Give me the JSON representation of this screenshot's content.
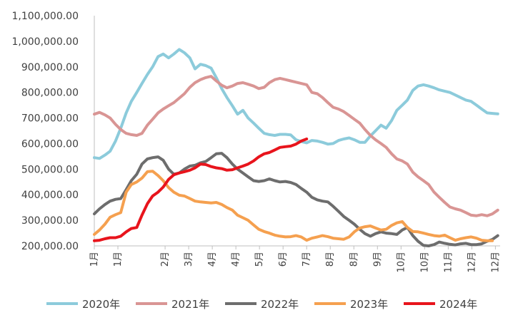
{
  "chart_data": {
    "type": "line",
    "title": "",
    "xlabel": "",
    "ylabel": "",
    "ylim": [
      200000,
      1100000
    ],
    "y_ticks": [
      "200,000.00",
      "300,000.00",
      "400,000.00",
      "500,000.00",
      "600,000.00",
      "700,000.00",
      "800,000.00",
      "900,000.00",
      "1,000,000.00",
      "1,100,000.00"
    ],
    "y_tick_values": [
      200000,
      300000,
      400000,
      500000,
      600000,
      700000,
      800000,
      900000,
      1000000,
      1100000
    ],
    "x_ticks": [
      "1月",
      "1月",
      "2月",
      "3月",
      "4月",
      "4月",
      "5月",
      "6月",
      "7月",
      "8月",
      "8月",
      "9月",
      "10月",
      "10月",
      "11月",
      "12月",
      "12月"
    ],
    "x_tick_weeks": [
      1,
      2,
      4,
      5,
      6,
      7,
      8,
      9,
      10,
      11,
      12,
      13,
      14,
      15,
      16,
      17,
      18
    ],
    "xlim": [
      1,
      18.2
    ],
    "grid": false,
    "legend_position": "bottom",
    "series": [
      {
        "name": "2020年",
        "color": "#8CCBDB",
        "x": [
          1,
          1.22,
          1.45,
          1.67,
          1.9,
          2.12,
          2.35,
          2.57,
          2.8,
          3.02,
          3.25,
          3.47,
          3.7,
          3.92,
          4.15,
          4.37,
          4.6,
          4.82,
          5.05,
          5.27,
          5.5,
          5.72,
          5.95,
          6.17,
          6.4,
          6.62,
          6.85,
          7.07,
          7.3,
          7.52,
          7.75,
          7.97,
          8.2,
          8.42,
          8.65,
          8.87,
          9.1,
          9.32,
          9.55,
          9.77,
          10.0,
          10.22,
          10.45,
          10.67,
          10.9,
          11.12,
          11.35,
          11.57,
          11.8,
          12.02,
          12.25,
          12.47,
          12.7,
          12.92,
          13.15,
          13.37,
          13.6,
          13.82,
          14.05,
          14.27,
          14.5,
          14.72,
          14.95,
          15.17,
          15.4,
          15.62,
          15.85,
          16.07,
          16.3,
          16.52,
          16.75,
          16.97,
          17.2,
          17.42,
          17.65,
          17.87,
          18.1
        ],
        "y": [
          545000,
          542000,
          555000,
          570000,
          610000,
          660000,
          720000,
          765000,
          800000,
          835000,
          870000,
          900000,
          940000,
          950000,
          935000,
          950000,
          968000,
          955000,
          935000,
          892000,
          910000,
          905000,
          895000,
          858000,
          815000,
          780000,
          748000,
          715000,
          730000,
          700000,
          680000,
          660000,
          640000,
          635000,
          632000,
          636000,
          636000,
          634000,
          615000,
          608000,
          603000,
          612000,
          610000,
          605000,
          598000,
          600000,
          612000,
          618000,
          622000,
          615000,
          605000,
          605000,
          630000,
          650000,
          672000,
          660000,
          690000,
          730000,
          750000,
          770000,
          808000,
          825000,
          830000,
          825000,
          818000,
          810000,
          805000,
          800000,
          790000,
          780000,
          770000,
          765000,
          750000,
          735000,
          720000,
          718000,
          716000
        ]
      },
      {
        "name": "2021年",
        "color": "#D99594",
        "x": [
          1,
          1.22,
          1.45,
          1.67,
          1.9,
          2.12,
          2.35,
          2.57,
          2.8,
          3.02,
          3.25,
          3.47,
          3.7,
          3.92,
          4.15,
          4.37,
          4.6,
          4.82,
          5.05,
          5.27,
          5.5,
          5.72,
          5.95,
          6.17,
          6.4,
          6.62,
          6.85,
          7.07,
          7.3,
          7.52,
          7.75,
          7.97,
          8.2,
          8.42,
          8.65,
          8.87,
          9.1,
          9.32,
          9.55,
          9.77,
          10.0,
          10.22,
          10.45,
          10.67,
          10.9,
          11.12,
          11.35,
          11.57,
          11.8,
          12.02,
          12.25,
          12.47,
          12.7,
          12.92,
          13.15,
          13.37,
          13.6,
          13.82,
          14.05,
          14.27,
          14.5,
          14.72,
          14.95,
          15.17,
          15.4,
          15.62,
          15.85,
          16.07,
          16.3,
          16.52,
          16.75,
          16.97,
          17.2,
          17.42,
          17.65,
          17.87,
          18.1
        ],
        "y": [
          715000,
          722000,
          712000,
          700000,
          675000,
          655000,
          640000,
          635000,
          632000,
          640000,
          672000,
          695000,
          720000,
          735000,
          748000,
          760000,
          778000,
          795000,
          820000,
          838000,
          850000,
          858000,
          863000,
          845000,
          828000,
          818000,
          825000,
          835000,
          838000,
          832000,
          825000,
          815000,
          820000,
          838000,
          850000,
          855000,
          850000,
          845000,
          840000,
          835000,
          830000,
          800000,
          795000,
          780000,
          760000,
          742000,
          735000,
          725000,
          710000,
          695000,
          680000,
          655000,
          632000,
          615000,
          600000,
          585000,
          560000,
          540000,
          532000,
          520000,
          488000,
          470000,
          455000,
          440000,
          410000,
          390000,
          370000,
          352000,
          345000,
          340000,
          330000,
          320000,
          318000,
          322000,
          318000,
          325000,
          340000
        ]
      },
      {
        "name": "2022年",
        "color": "#6D6D6D",
        "x": [
          1,
          1.22,
          1.45,
          1.67,
          1.9,
          2.12,
          2.35,
          2.57,
          2.8,
          3.02,
          3.25,
          3.47,
          3.7,
          3.92,
          4.15,
          4.37,
          4.6,
          4.82,
          5.05,
          5.27,
          5.5,
          5.72,
          5.95,
          6.17,
          6.4,
          6.62,
          6.85,
          7.07,
          7.3,
          7.52,
          7.75,
          7.97,
          8.2,
          8.42,
          8.65,
          8.87,
          9.1,
          9.32,
          9.55,
          9.77,
          10.0,
          10.22,
          10.45,
          10.67,
          10.9,
          11.12,
          11.35,
          11.57,
          11.8,
          12.02,
          12.25,
          12.47,
          12.7,
          12.92,
          13.15,
          13.37,
          13.6,
          13.82,
          14.05,
          14.27,
          14.5,
          14.72,
          14.95,
          15.17,
          15.4,
          15.62,
          15.85,
          16.07,
          16.3,
          16.52,
          16.75,
          16.97,
          17.2,
          17.42,
          17.65,
          17.87,
          18.1
        ],
        "y": [
          325000,
          345000,
          362000,
          375000,
          382000,
          385000,
          420000,
          455000,
          480000,
          520000,
          540000,
          545000,
          548000,
          535000,
          500000,
          480000,
          485000,
          500000,
          512000,
          515000,
          525000,
          530000,
          545000,
          560000,
          562000,
          545000,
          520000,
          500000,
          485000,
          470000,
          455000,
          452000,
          455000,
          462000,
          455000,
          450000,
          452000,
          448000,
          440000,
          425000,
          410000,
          390000,
          380000,
          375000,
          372000,
          355000,
          335000,
          315000,
          300000,
          285000,
          265000,
          248000,
          238000,
          248000,
          255000,
          250000,
          248000,
          245000,
          262000,
          272000,
          240000,
          218000,
          202000,
          200000,
          205000,
          215000,
          210000,
          206000,
          204000,
          208000,
          210000,
          205000,
          205000,
          208000,
          218000,
          225000,
          240000
        ]
      },
      {
        "name": "2023年",
        "color": "#F5A04F",
        "x": [
          1,
          1.22,
          1.45,
          1.67,
          1.9,
          2.12,
          2.35,
          2.57,
          2.8,
          3.02,
          3.25,
          3.47,
          3.7,
          3.92,
          4.15,
          4.37,
          4.6,
          4.82,
          5.05,
          5.27,
          5.5,
          5.72,
          5.95,
          6.17,
          6.4,
          6.62,
          6.85,
          7.07,
          7.3,
          7.52,
          7.75,
          7.97,
          8.2,
          8.42,
          8.65,
          8.87,
          9.1,
          9.32,
          9.55,
          9.77,
          10.0,
          10.22,
          10.45,
          10.67,
          10.9,
          11.12,
          11.35,
          11.57,
          11.8,
          12.02,
          12.25,
          12.47,
          12.7,
          12.92,
          13.15,
          13.37,
          13.6,
          13.82,
          14.05,
          14.27,
          14.5,
          14.72,
          14.95,
          15.17,
          15.4,
          15.62,
          15.85,
          16.07,
          16.3,
          16.52,
          16.75,
          16.97,
          17.2,
          17.42,
          17.65,
          17.87
        ],
        "y": [
          245000,
          262000,
          285000,
          312000,
          322000,
          330000,
          410000,
          440000,
          450000,
          465000,
          490000,
          492000,
          475000,
          455000,
          428000,
          410000,
          398000,
          395000,
          385000,
          375000,
          372000,
          370000,
          368000,
          370000,
          362000,
          350000,
          340000,
          320000,
          310000,
          300000,
          282000,
          265000,
          256000,
          250000,
          242000,
          238000,
          235000,
          236000,
          240000,
          235000,
          222000,
          230000,
          235000,
          240000,
          236000,
          230000,
          228000,
          226000,
          235000,
          255000,
          270000,
          275000,
          278000,
          270000,
          262000,
          265000,
          280000,
          290000,
          295000,
          272000,
          256000,
          255000,
          250000,
          245000,
          240000,
          238000,
          242000,
          232000,
          222000,
          228000,
          232000,
          235000,
          230000,
          222000,
          220000,
          220000
        ]
      },
      {
        "name": "2024年",
        "color": "#E8141C",
        "x": [
          1,
          1.22,
          1.45,
          1.67,
          1.9,
          2.12,
          2.35,
          2.57,
          2.8,
          3.02,
          3.25,
          3.47,
          3.7,
          3.92,
          4.15,
          4.37,
          4.6,
          4.82,
          5.05,
          5.27,
          5.5,
          5.72,
          5.95,
          6.17,
          6.4,
          6.62,
          6.85,
          7.07,
          7.3,
          7.52,
          7.75,
          7.97,
          8.2,
          8.42,
          8.65,
          8.87,
          9.1,
          9.32,
          9.55,
          9.77,
          10.0
        ],
        "y": [
          220000,
          222000,
          228000,
          232000,
          232000,
          238000,
          255000,
          268000,
          272000,
          320000,
          365000,
          395000,
          410000,
          430000,
          460000,
          478000,
          485000,
          490000,
          496000,
          505000,
          520000,
          518000,
          510000,
          505000,
          502000,
          496000,
          498000,
          505000,
          512000,
          520000,
          532000,
          548000,
          560000,
          565000,
          575000,
          585000,
          588000,
          590000,
          598000,
          610000,
          618000
        ]
      }
    ]
  }
}
